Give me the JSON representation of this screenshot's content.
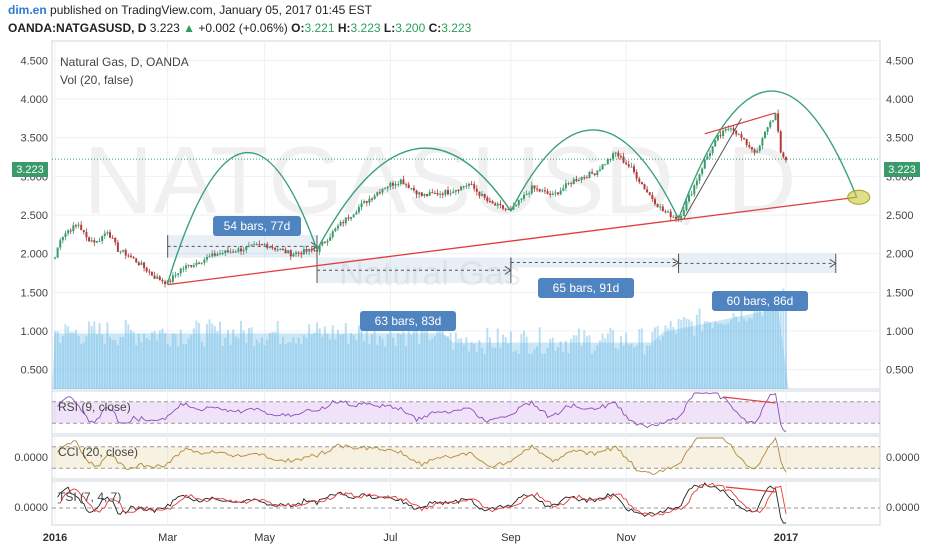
{
  "header": {
    "author": "dim.en",
    "published": "published on TradingView.com, January 05, 2017 01:45 EST",
    "symbol": "OANDA:NATGASUSD, D",
    "last": "3.223",
    "arrow": "▲",
    "change": "+0.002 (+0.06%)",
    "o_label": "O:",
    "o_value": "3.221",
    "h_label": "H:",
    "h_value": "3.223",
    "l_label": "L:",
    "l_value": "3.200",
    "c_label": "C:",
    "c_value": "3.223"
  },
  "main_pane": {
    "title": "Natural Gas, D, OANDA",
    "volume_label": "Vol (20, false)",
    "watermark": "NATGASUSD, D",
    "watermark_sub": "Natural Gas",
    "price_badge": "3.223",
    "colors": {
      "up": "#3a9a6a",
      "down": "#b23b3b",
      "arc": "#3aa07a",
      "trend": "#e23c3c",
      "volume": "#6ab9e6",
      "badge": "#3a9a6a",
      "annotation": "#4f84c0"
    }
  },
  "annotations": [
    {
      "text": "54 bars, 77d"
    },
    {
      "text": "63 bars, 83d"
    },
    {
      "text": "65 bars, 91d"
    },
    {
      "text": "60 bars, 86d"
    }
  ],
  "indicators": {
    "rsi": {
      "label": "RSI (9, close)"
    },
    "cci": {
      "label": "CCI (20, close)",
      "value": "0.0000"
    },
    "tsi": {
      "label": "TSI (7, 4, 7)",
      "value": "0.0000"
    }
  },
  "x_axis": {
    "ticks": [
      "2016",
      "Mar",
      "May",
      "Jul",
      "Sep",
      "Nov",
      "2017"
    ]
  },
  "chart_data": {
    "type": "candlestick",
    "title": "Natural Gas, D, OANDA",
    "y_ticks": [
      "4.500",
      "4.000",
      "3.500",
      "3.000",
      "2.500",
      "2.000",
      "1.500",
      "1.000",
      "0.500"
    ],
    "ylim": [
      0.25,
      4.75
    ],
    "x_ticks": [
      "2016",
      "Mar",
      "May",
      "Jul",
      "Sep",
      "Nov",
      "2017"
    ],
    "close_path": [
      {
        "x": 0,
        "y": 1.95
      },
      {
        "x": 2,
        "y": 2.2
      },
      {
        "x": 5,
        "y": 2.3
      },
      {
        "x": 9,
        "y": 2.38
      },
      {
        "x": 12,
        "y": 2.2
      },
      {
        "x": 16,
        "y": 2.15
      },
      {
        "x": 20,
        "y": 2.3
      },
      {
        "x": 24,
        "y": 2.05
      },
      {
        "x": 28,
        "y": 1.98
      },
      {
        "x": 33,
        "y": 1.85
      },
      {
        "x": 38,
        "y": 1.7
      },
      {
        "x": 43,
        "y": 1.62
      },
      {
        "x": 48,
        "y": 1.8
      },
      {
        "x": 55,
        "y": 1.9
      },
      {
        "x": 62,
        "y": 2.0
      },
      {
        "x": 70,
        "y": 2.05
      },
      {
        "x": 80,
        "y": 2.12
      },
      {
        "x": 90,
        "y": 2.0
      },
      {
        "x": 100,
        "y": 2.05
      },
      {
        "x": 108,
        "y": 2.35
      },
      {
        "x": 116,
        "y": 2.6
      },
      {
        "x": 125,
        "y": 2.85
      },
      {
        "x": 132,
        "y": 2.95
      },
      {
        "x": 140,
        "y": 2.75
      },
      {
        "x": 150,
        "y": 2.8
      },
      {
        "x": 158,
        "y": 2.9
      },
      {
        "x": 166,
        "y": 2.65
      },
      {
        "x": 174,
        "y": 2.55
      },
      {
        "x": 182,
        "y": 2.85
      },
      {
        "x": 190,
        "y": 2.75
      },
      {
        "x": 198,
        "y": 2.95
      },
      {
        "x": 206,
        "y": 3.05
      },
      {
        "x": 214,
        "y": 3.3
      },
      {
        "x": 220,
        "y": 3.1
      },
      {
        "x": 226,
        "y": 2.8
      },
      {
        "x": 232,
        "y": 2.55
      },
      {
        "x": 238,
        "y": 2.45
      },
      {
        "x": 243,
        "y": 2.8
      },
      {
        "x": 248,
        "y": 3.2
      },
      {
        "x": 253,
        "y": 3.5
      },
      {
        "x": 258,
        "y": 3.65
      },
      {
        "x": 263,
        "y": 3.45
      },
      {
        "x": 268,
        "y": 3.3
      },
      {
        "x": 272,
        "y": 3.65
      },
      {
        "x": 275,
        "y": 3.8
      },
      {
        "x": 277,
        "y": 3.3
      },
      {
        "x": 279,
        "y": 3.22
      }
    ],
    "arcs": [
      {
        "from": 43,
        "to": 100,
        "peak": 3.3
      },
      {
        "from": 100,
        "to": 174,
        "peak": 3.35
      },
      {
        "from": 174,
        "to": 238,
        "peak": 3.6
      },
      {
        "from": 238,
        "to": 306,
        "peak": 4.1
      }
    ],
    "trendline": [
      {
        "x": 43,
        "y": 1.6
      },
      {
        "x": 306,
        "y": 2.73
      }
    ],
    "last_price": 3.223
  }
}
